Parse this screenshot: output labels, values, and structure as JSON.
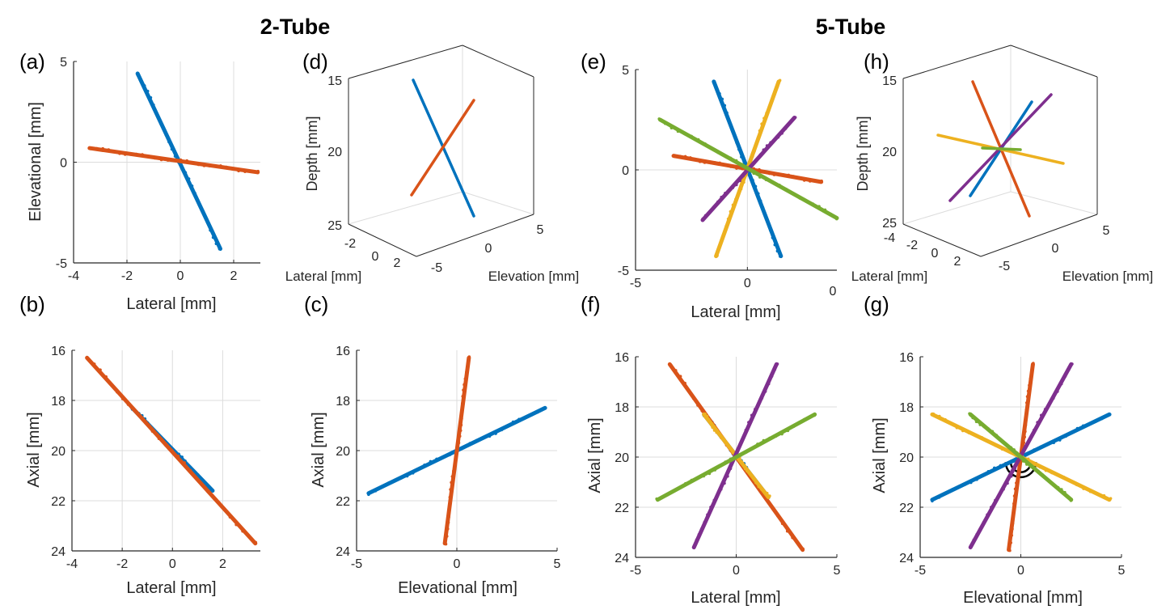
{
  "colors": {
    "blue": "#0072BD",
    "orange": "#D95319",
    "yellow": "#EDB120",
    "purple": "#7E2F8E",
    "green": "#77AC30",
    "axis": "#262626",
    "grid": "#dcdcdc"
  },
  "group_titles": [
    "2-Tube",
    "5-Tube"
  ],
  "stray_text": "0",
  "chart_data": [
    {
      "id": "a",
      "type": "scatter",
      "panel_label": "(a)",
      "xlabel": "Lateral [mm]",
      "ylabel": "Elevational [mm]",
      "xlim": [
        -4,
        3
      ],
      "ylim": [
        -5,
        5
      ],
      "xticks": [
        -4,
        -2,
        0,
        2
      ],
      "yticks": [
        -5,
        0,
        5
      ],
      "series": [
        {
          "name": "tube1",
          "color": "blue",
          "x": [
            -1.6,
            1.5
          ],
          "y": [
            4.4,
            -4.3
          ]
        },
        {
          "name": "tube2",
          "color": "orange",
          "x": [
            -3.4,
            2.9
          ],
          "y": [
            0.7,
            -0.5
          ]
        }
      ]
    },
    {
      "id": "b",
      "type": "scatter",
      "panel_label": "(b)",
      "xlabel": "Lateral [mm]",
      "ylabel": "Axial [mm]",
      "xlim": [
        -4,
        3.5
      ],
      "ylim": [
        24,
        16
      ],
      "xticks": [
        -4,
        -2,
        0,
        2
      ],
      "yticks": [
        16,
        18,
        20,
        22,
        24
      ],
      "series": [
        {
          "name": "tube1",
          "color": "blue",
          "x": [
            -1.6,
            1.6
          ],
          "y": [
            18.3,
            21.6
          ]
        },
        {
          "name": "tube2",
          "color": "orange",
          "x": [
            -3.4,
            3.3
          ],
          "y": [
            16.3,
            23.7
          ]
        }
      ]
    },
    {
      "id": "c",
      "type": "scatter",
      "panel_label": "(c)",
      "xlabel": "Elevational [mm]",
      "ylabel": "Axial [mm]",
      "xlim": [
        -5,
        5
      ],
      "ylim": [
        24,
        16
      ],
      "xticks": [
        -5,
        0,
        5
      ],
      "yticks": [
        16,
        18,
        20,
        22,
        24
      ],
      "series": [
        {
          "name": "tube1",
          "color": "blue",
          "x": [
            -4.4,
            4.4
          ],
          "y": [
            21.7,
            18.3
          ]
        },
        {
          "name": "tube2",
          "color": "orange",
          "x": [
            -0.6,
            0.6
          ],
          "y": [
            23.7,
            16.3
          ]
        }
      ]
    },
    {
      "id": "d",
      "type": "scatter3d",
      "panel_label": "(d)",
      "xlabel": "Lateral [mm]",
      "ylabel": "Elevation [mm]",
      "zlabel": "Depth [mm]",
      "lateral_ticks": [
        -2,
        0,
        2
      ],
      "elevation_ticks": [
        -5,
        0,
        5
      ],
      "depth_ticks": [
        15,
        20,
        25
      ],
      "series": [
        {
          "name": "tube1",
          "color": "blue"
        },
        {
          "name": "tube2",
          "color": "orange"
        }
      ]
    },
    {
      "id": "e",
      "type": "scatter",
      "panel_label": "(e)",
      "xlabel": "Lateral [mm]",
      "ylabel": "",
      "xlim": [
        -5,
        4
      ],
      "ylim": [
        -5,
        5
      ],
      "xticks": [
        -5,
        0
      ],
      "yticks": [
        -5,
        0,
        5
      ],
      "series": [
        {
          "name": "tube1",
          "color": "blue",
          "x": [
            -1.5,
            1.5
          ],
          "y": [
            4.4,
            -4.3
          ]
        },
        {
          "name": "tube2",
          "color": "orange",
          "x": [
            -3.3,
            3.3
          ],
          "y": [
            0.7,
            -0.6
          ]
        },
        {
          "name": "tube3",
          "color": "yellow",
          "x": [
            -1.4,
            1.4
          ],
          "y": [
            -4.3,
            4.4
          ]
        },
        {
          "name": "tube4",
          "color": "purple",
          "x": [
            -2.0,
            2.1
          ],
          "y": [
            -2.5,
            2.6
          ]
        },
        {
          "name": "tube5",
          "color": "green",
          "x": [
            -3.9,
            4.0
          ],
          "y": [
            2.5,
            -2.4
          ]
        }
      ]
    },
    {
      "id": "f",
      "type": "scatter",
      "panel_label": "(f)",
      "xlabel": "Lateral [mm]",
      "ylabel": "Axial [mm]",
      "xlim": [
        -5,
        5
      ],
      "ylim": [
        24,
        16
      ],
      "xticks": [
        -5,
        0,
        5
      ],
      "yticks": [
        16,
        18,
        20,
        22,
        24
      ],
      "series": [
        {
          "name": "tube1",
          "color": "blue",
          "x": [
            -1.6,
            1.6
          ],
          "y": [
            18.3,
            21.6
          ]
        },
        {
          "name": "tube2",
          "color": "orange",
          "x": [
            -3.3,
            3.3
          ],
          "y": [
            16.3,
            23.7
          ]
        },
        {
          "name": "tube3",
          "color": "yellow",
          "x": [
            -1.6,
            1.6
          ],
          "y": [
            18.3,
            21.6
          ]
        },
        {
          "name": "tube4",
          "color": "purple",
          "x": [
            -2.1,
            2.0
          ],
          "y": [
            23.6,
            16.3
          ]
        },
        {
          "name": "tube5",
          "color": "green",
          "x": [
            -3.9,
            3.9
          ],
          "y": [
            21.7,
            18.3
          ]
        }
      ]
    },
    {
      "id": "g",
      "type": "scatter",
      "panel_label": "(g)",
      "xlabel": "Elevational [mm]",
      "ylabel": "Axial [mm]",
      "xlim": [
        -5,
        5
      ],
      "ylim": [
        24,
        16
      ],
      "xticks": [
        -5,
        0,
        5
      ],
      "yticks": [
        16,
        18,
        20,
        22,
        24
      ],
      "series": [
        {
          "name": "tube1",
          "color": "blue",
          "x": [
            -4.4,
            4.4
          ],
          "y": [
            21.7,
            18.3
          ]
        },
        {
          "name": "tube2",
          "color": "orange",
          "x": [
            -0.6,
            0.6
          ],
          "y": [
            23.7,
            16.3
          ]
        },
        {
          "name": "tube3",
          "color": "yellow",
          "x": [
            -4.4,
            4.4
          ],
          "y": [
            18.3,
            21.7
          ]
        },
        {
          "name": "tube4",
          "color": "purple",
          "x": [
            -2.5,
            2.5
          ],
          "y": [
            23.6,
            16.3
          ]
        },
        {
          "name": "tube5",
          "color": "green",
          "x": [
            -2.5,
            2.5
          ],
          "y": [
            18.3,
            21.7
          ]
        }
      ],
      "arc_markers": {
        "center": [
          0,
          20.2
        ],
        "radii_mm": [
          0.5,
          0.75
        ],
        "color": "#000000"
      }
    },
    {
      "id": "h",
      "type": "scatter3d",
      "panel_label": "(h)",
      "xlabel": "Lateral [mm]",
      "ylabel": "Elevation [mm]",
      "zlabel": "Depth [mm]",
      "lateral_ticks": [
        -4,
        -2,
        0,
        2
      ],
      "elevation_ticks": [
        -5,
        0,
        5
      ],
      "depth_ticks": [
        15,
        20,
        25
      ],
      "series": [
        {
          "name": "tube1",
          "color": "blue"
        },
        {
          "name": "tube2",
          "color": "orange"
        },
        {
          "name": "tube3",
          "color": "yellow"
        },
        {
          "name": "tube4",
          "color": "purple"
        },
        {
          "name": "tube5",
          "color": "green"
        }
      ]
    }
  ]
}
